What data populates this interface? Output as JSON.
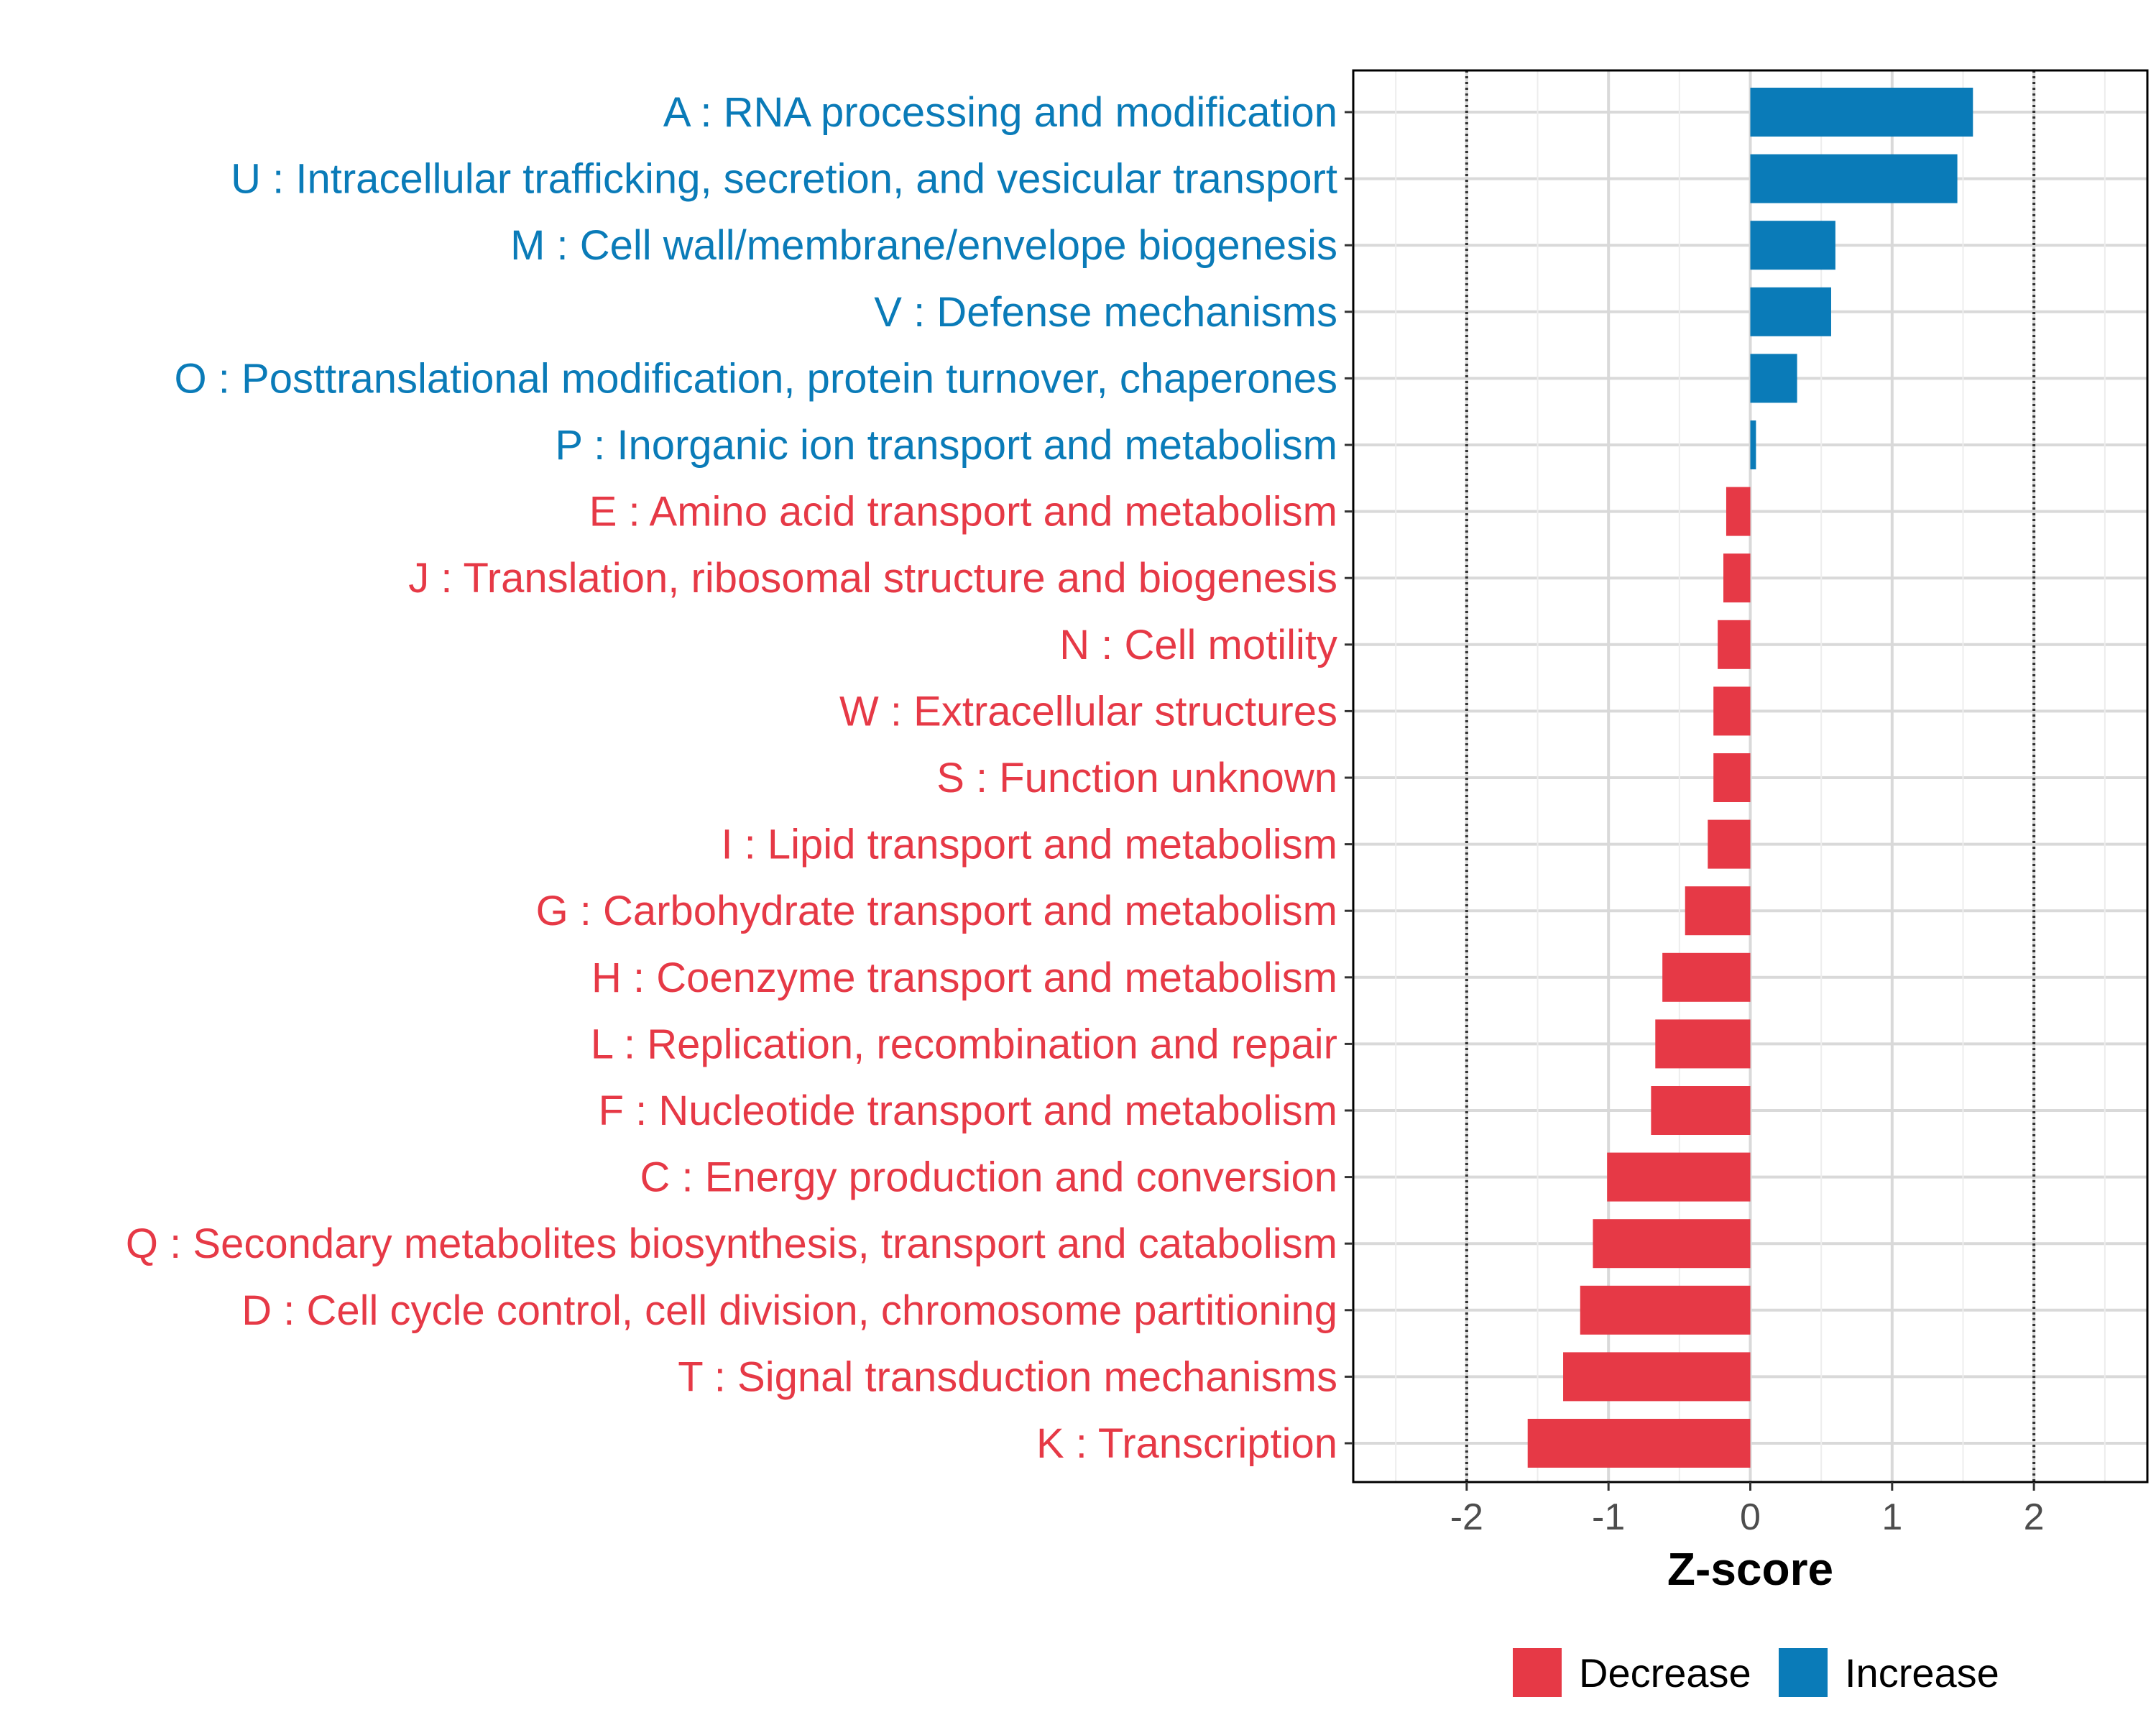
{
  "chart_data": {
    "type": "bar",
    "orientation": "horizontal",
    "title": "",
    "xlabel": "Z-score",
    "ylabel": "",
    "xlim": [
      -2.8,
      2.8
    ],
    "x_ticks": [
      -2,
      -1,
      0,
      1,
      2
    ],
    "x_tick_labels": [
      "-2",
      "-1",
      "0",
      "1",
      "2"
    ],
    "reference_lines": [
      -2,
      2
    ],
    "grid": true,
    "legend_position": "bottom",
    "colors": {
      "Decrease": "#E63946",
      "Increase": "#0A7BB8"
    },
    "series": [
      {
        "name": "Decrease",
        "color": "#E63946"
      },
      {
        "name": "Increase",
        "color": "#0A7BB8"
      }
    ],
    "categories": [
      {
        "label": "A : RNA processing and modification",
        "value": 1.57,
        "direction": "Increase"
      },
      {
        "label": "U : Intracellular trafficking, secretion, and vesicular transport",
        "value": 1.46,
        "direction": "Increase"
      },
      {
        "label": "M : Cell wall/membrane/envelope biogenesis",
        "value": 0.6,
        "direction": "Increase"
      },
      {
        "label": "V : Defense mechanisms",
        "value": 0.57,
        "direction": "Increase"
      },
      {
        "label": "O : Posttranslational modification, protein turnover, chaperones",
        "value": 0.33,
        "direction": "Increase"
      },
      {
        "label": "P : Inorganic ion transport and metabolism",
        "value": 0.04,
        "direction": "Increase"
      },
      {
        "label": "E : Amino acid transport and metabolism",
        "value": -0.17,
        "direction": "Decrease"
      },
      {
        "label": "J : Translation, ribosomal structure and biogenesis",
        "value": -0.19,
        "direction": "Decrease"
      },
      {
        "label": "N : Cell motility",
        "value": -0.23,
        "direction": "Decrease"
      },
      {
        "label": "W : Extracellular structures",
        "value": -0.26,
        "direction": "Decrease"
      },
      {
        "label": "S : Function unknown",
        "value": -0.26,
        "direction": "Decrease"
      },
      {
        "label": "I : Lipid transport and metabolism",
        "value": -0.3,
        "direction": "Decrease"
      },
      {
        "label": "G : Carbohydrate transport and metabolism",
        "value": -0.46,
        "direction": "Decrease"
      },
      {
        "label": "H : Coenzyme transport and metabolism",
        "value": -0.62,
        "direction": "Decrease"
      },
      {
        "label": "L : Replication, recombination and repair",
        "value": -0.67,
        "direction": "Decrease"
      },
      {
        "label": "F : Nucleotide transport and metabolism",
        "value": -0.7,
        "direction": "Decrease"
      },
      {
        "label": "C : Energy production and conversion",
        "value": -1.01,
        "direction": "Decrease"
      },
      {
        "label": "Q : Secondary metabolites biosynthesis, transport and catabolism",
        "value": -1.11,
        "direction": "Decrease"
      },
      {
        "label": "D : Cell cycle control, cell division, chromosome partitioning",
        "value": -1.2,
        "direction": "Decrease"
      },
      {
        "label": "T : Signal transduction mechanisms",
        "value": -1.32,
        "direction": "Decrease"
      },
      {
        "label": "K : Transcription",
        "value": -1.57,
        "direction": "Decrease"
      }
    ]
  }
}
